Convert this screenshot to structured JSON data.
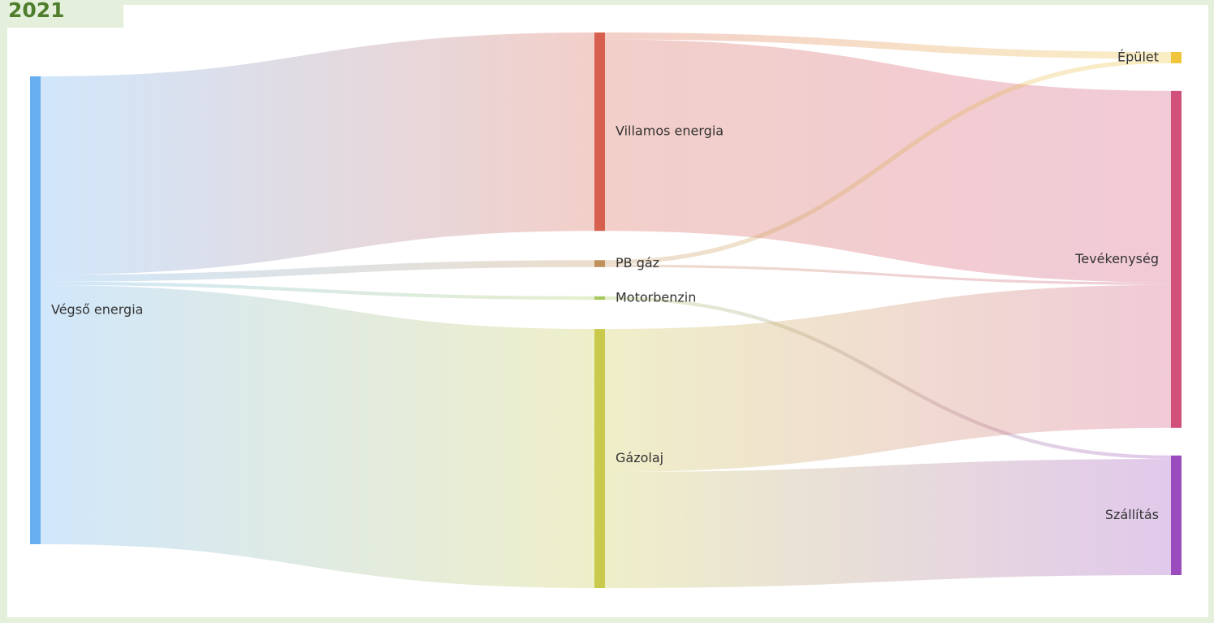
{
  "header": {
    "year": "2021"
  },
  "chart_data": {
    "type": "sankey",
    "nodes": [
      {
        "id": "vegso",
        "name": "Végső energia",
        "color": "#66aef0",
        "label_side": "right"
      },
      {
        "id": "villamos",
        "name": "Villamos energia",
        "color": "#d6604d",
        "label_side": "right"
      },
      {
        "id": "pb",
        "name": "PB gáz",
        "color": "#c0905a",
        "label_side": "right"
      },
      {
        "id": "motorbenzin",
        "name": "Motorbenzin",
        "color": "#a6c85c",
        "label_side": "right"
      },
      {
        "id": "gazolaj",
        "name": "Gázolaj",
        "color": "#c9c94c",
        "label_side": "right"
      },
      {
        "id": "epulet",
        "name": "Épület",
        "color": "#f0c53c",
        "label_side": "left"
      },
      {
        "id": "tevekenyseg",
        "name": "Tevékenység",
        "color": "#d0507a",
        "label_side": "left"
      },
      {
        "id": "szallitas",
        "name": "Szállítás",
        "color": "#9a4bbd",
        "label_side": "left"
      }
    ],
    "links": [
      {
        "source": "vegso",
        "target": "villamos",
        "value": 229
      },
      {
        "source": "vegso",
        "target": "pb",
        "value": 8
      },
      {
        "source": "vegso",
        "target": "motorbenzin",
        "value": 4
      },
      {
        "source": "vegso",
        "target": "gazolaj",
        "value": 299
      },
      {
        "source": "villamos",
        "target": "epulet",
        "value": 8
      },
      {
        "source": "villamos",
        "target": "tevekenyseg",
        "value": 221
      },
      {
        "source": "pb",
        "target": "epulet",
        "value": 5
      },
      {
        "source": "pb",
        "target": "tevekenyseg",
        "value": 3
      },
      {
        "source": "motorbenzin",
        "target": "szallitas",
        "value": 4
      },
      {
        "source": "gazolaj",
        "target": "tevekenyseg",
        "value": 165
      },
      {
        "source": "gazolaj",
        "target": "szallitas",
        "value": 134
      }
    ]
  }
}
